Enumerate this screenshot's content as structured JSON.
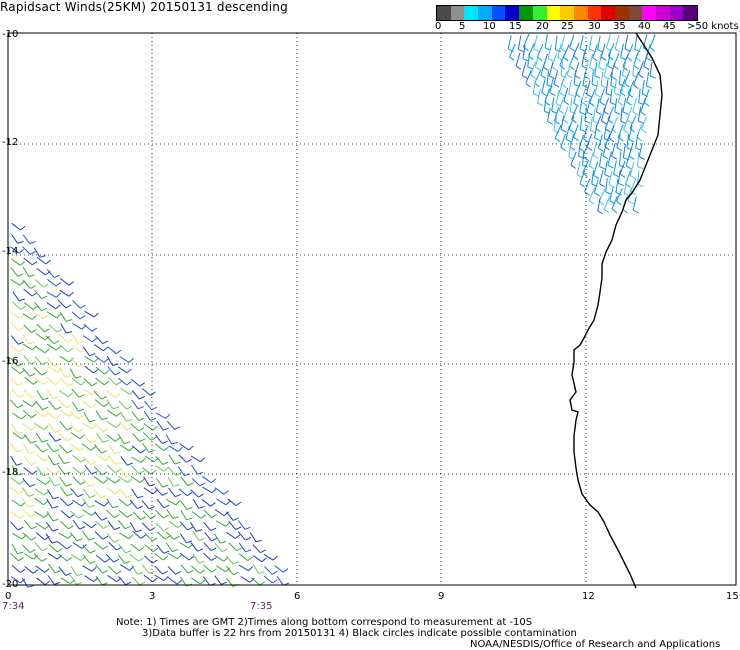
{
  "title": "Rapidsact Winds(25KM) 20150131 descending",
  "legend": {
    "colors": [
      "#4a4a4a",
      "#8f8f8f",
      "#00e5ff",
      "#00aaff",
      "#0050ff",
      "#0000c8",
      "#009900",
      "#33ee33",
      "#ffff00",
      "#ffcc00",
      "#ff8800",
      "#ff3300",
      "#dd0000",
      "#993300",
      "#7a4a3a",
      "#ff00ff",
      "#cc00cc",
      "#9900cc",
      "#5a007a"
    ],
    "labels": [
      "0",
      "5",
      "10",
      "15",
      "20",
      "25",
      "30",
      "35",
      "40",
      "45",
      ">50 knots"
    ]
  },
  "axes": {
    "x_ticks": [
      "0",
      "3",
      "6",
      "9",
      "12",
      "15"
    ],
    "y_ticks": [
      "-10",
      "-12",
      "-14",
      "-16",
      "-18",
      "-20"
    ]
  },
  "times": {
    "start": "7:34",
    "end": "7:35"
  },
  "notes": {
    "line1": "Note: 1) Times are GMT 2)Times along bottom correspond to measurement at -10S",
    "line2": "3)Data buffer is 22 hrs from 20150131 4) Black circles indicate possible contamination",
    "line3": "NOAA/NESDIS/Office of Research and Applications"
  }
}
